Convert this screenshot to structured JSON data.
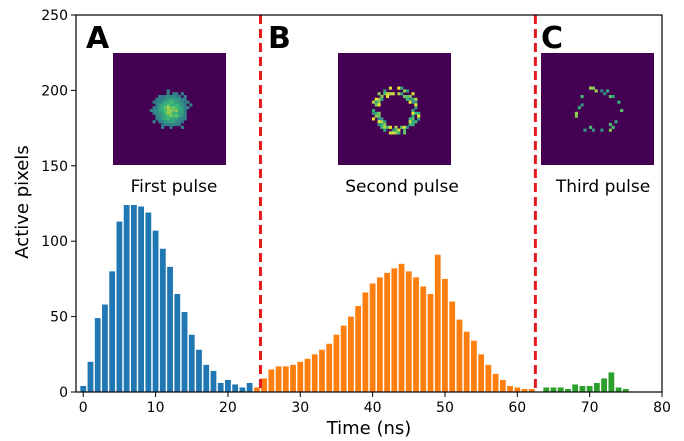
{
  "chart_data": {
    "type": "bar",
    "xlabel": "Time (ns)",
    "ylabel": "Active pixels",
    "xlim": [
      -1,
      80
    ],
    "ylim": [
      0,
      250
    ],
    "xticks": [
      "0",
      "10",
      "20",
      "30",
      "40",
      "50",
      "60",
      "70",
      "80"
    ],
    "yticks": [
      "0",
      "50",
      "100",
      "150",
      "200",
      "250"
    ],
    "bar_width_ns": 0.8,
    "grid": false,
    "series": [
      {
        "color": "#1f77b4",
        "x": [
          0,
          1,
          2,
          3,
          4,
          5,
          6,
          7,
          8,
          9,
          10,
          11,
          12,
          13,
          14,
          15,
          16,
          17,
          18,
          19,
          20,
          21,
          22,
          23
        ],
        "values": [
          4,
          20,
          49,
          58,
          80,
          113,
          124,
          124,
          123,
          119,
          107,
          95,
          83,
          65,
          53,
          38,
          28,
          18,
          14,
          6,
          8,
          5,
          3,
          6
        ]
      },
      {
        "color": "#ff7f0e",
        "x": [
          24,
          25,
          26,
          27,
          28,
          29,
          30,
          31,
          32,
          33,
          34,
          35,
          36,
          37,
          38,
          39,
          40,
          41,
          42,
          43,
          44,
          45,
          46,
          47,
          48,
          49,
          50,
          51,
          52,
          53,
          54,
          55,
          56,
          57,
          58,
          59,
          60,
          61,
          62
        ],
        "values": [
          3,
          9,
          15,
          17,
          17,
          18,
          20,
          22,
          25,
          28,
          32,
          38,
          44,
          50,
          57,
          66,
          72,
          76,
          79,
          82,
          85,
          80,
          76,
          70,
          65,
          91,
          75,
          60,
          48,
          40,
          34,
          25,
          18,
          12,
          8,
          4,
          3,
          2,
          2
        ]
      },
      {
        "color": "#2ca02c",
        "x": [
          64,
          65,
          66,
          67,
          68,
          69,
          70,
          71,
          72,
          73,
          74,
          75
        ],
        "values": [
          3,
          3,
          3,
          2,
          5,
          4,
          4,
          6,
          9,
          13,
          3,
          2
        ]
      }
    ],
    "dividers_x": [
      24.5,
      62.5
    ],
    "divider_color": "#e31a1c",
    "panels": [
      {
        "letter": "A",
        "caption": "First pulse"
      },
      {
        "letter": "B",
        "caption": "Second pulse"
      },
      {
        "letter": "C",
        "caption": "Third pulse"
      }
    ]
  },
  "colors": {
    "inset_background": "#440154",
    "inset_low": "#31688e",
    "inset_mid": "#35b779",
    "inset_high": "#fde725"
  }
}
